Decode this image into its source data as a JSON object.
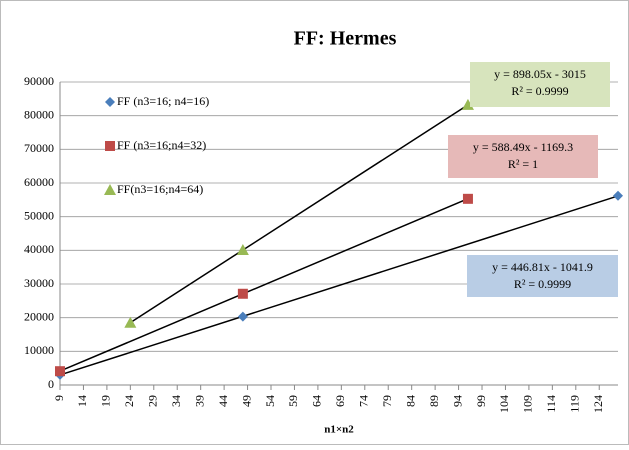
{
  "chart_data": {
    "type": "scatter",
    "title": "FF: Hermes",
    "x_label": "n1×n2",
    "xlim": [
      9,
      128
    ],
    "xticks": [
      9,
      14,
      19,
      24,
      29,
      34,
      39,
      44,
      49,
      54,
      59,
      64,
      69,
      74,
      79,
      84,
      89,
      94,
      99,
      104,
      109,
      114,
      119,
      124
    ],
    "ylim": [
      0,
      90000
    ],
    "yticks": [
      0,
      10000,
      20000,
      30000,
      40000,
      50000,
      60000,
      70000,
      80000,
      90000
    ],
    "grid": true,
    "legend": "left",
    "series": [
      {
        "name": "FF (n3=16; n4=16)",
        "color": "#4a7ebb",
        "marker": "diamond",
        "x": [
          9,
          48,
          128
        ],
        "values": [
          3000,
          20300,
          56200
        ],
        "trendline": {
          "slope": 446.81,
          "intercept": -1041.9,
          "equation": "y = 446.81x - 1041.9",
          "r2": "R² = 0.9999",
          "box": "#b9cde5"
        }
      },
      {
        "name": "FF (n3=16;n4=32)",
        "color": "#be4b48",
        "marker": "square",
        "x": [
          9,
          48,
          96
        ],
        "values": [
          4100,
          27100,
          55300
        ],
        "trendline": {
          "slope": 588.49,
          "intercept": -1169.3,
          "equation": "y = 588.49x - 1169.3",
          "r2": "R² = 1",
          "box": "#e6b9b8"
        }
      },
      {
        "name": "FF(n3=16;n4=64)",
        "color": "#98b954",
        "marker": "triangle",
        "x": [
          24,
          48,
          96
        ],
        "values": [
          18500,
          40100,
          83200
        ],
        "trendline": {
          "slope": 898.05,
          "intercept": -3015,
          "equation": "y = 898.05x - 3015",
          "r2": "R² = 0.9999",
          "box": "#d7e4bd"
        }
      }
    ]
  }
}
